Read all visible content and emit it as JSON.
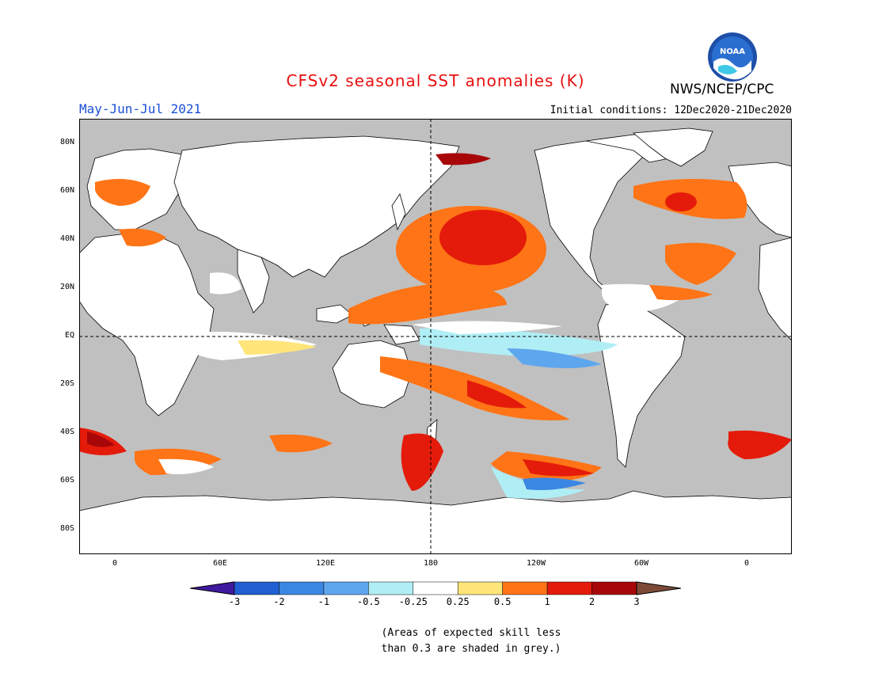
{
  "title": "CFSv2 seasonal SST anomalies (K)",
  "season": "May-Jun-Jul 2021",
  "initial_conditions": "Initial conditions: 12Dec2020-21Dec2020",
  "agency": "NWS/NCEP/CPC",
  "logo_text": "NOAA",
  "colors": {
    "title": "#e8100f",
    "season": "#1a4fd8",
    "ocean_grey": "#c0c0c0",
    "land": "#ffffff",
    "coast": "#000000"
  },
  "lat_labels": [
    "80N",
    "60N",
    "40N",
    "20N",
    "EQ",
    "20S",
    "40S",
    "60S",
    "80S"
  ],
  "lon_labels": [
    "0",
    "60E",
    "120E",
    "180",
    "120W",
    "60W",
    "0"
  ],
  "colorbar": {
    "ticks": [
      "-3",
      "-2",
      "-1",
      "-0.5",
      "-0.25",
      "0.25",
      "0.5",
      "1",
      "2",
      "3"
    ],
    "colors": [
      "#3f1a9f",
      "#1f5fd1",
      "#3a86e3",
      "#5ea6ee",
      "#b0eef5",
      "#ffffff",
      "#ffe57a",
      "#ff7416",
      "#e41b0a",
      "#a8070a",
      "#7d4a37"
    ]
  },
  "note": {
    "line1": "(Areas of expected skill less",
    "line2": "than 0.3 are shaded in grey.)"
  }
}
